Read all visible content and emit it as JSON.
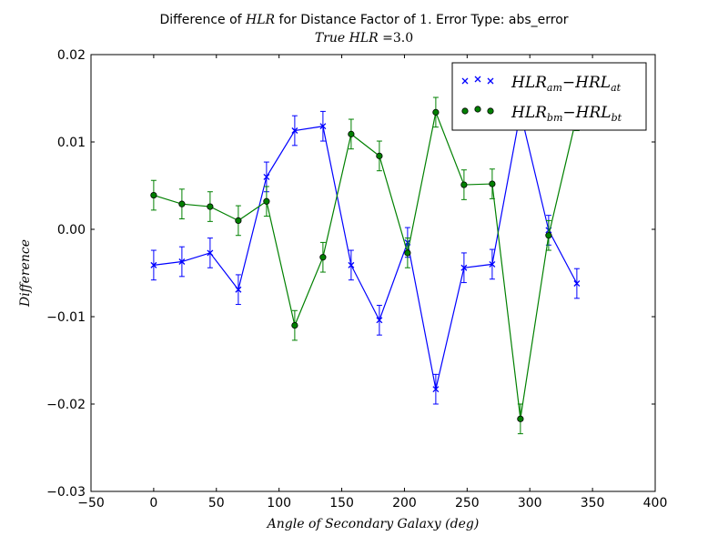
{
  "chart_data": {
    "type": "line",
    "title": "Difference of HLR for Distance Factor of 1. Error Type: abs_error",
    "title_parts": {
      "prefix": "Difference of ",
      "math": "HLR",
      "middle": " for Distance Factor of ",
      "number": "1.",
      "suffix": " Error Type: abs_error"
    },
    "subtitle": "True HLR =3.0",
    "subtitle_parts": {
      "math": "True HLR",
      "suffix": " =3.0"
    },
    "xlabel": "Angle of Secondary Galaxy (deg)",
    "ylabel": "Difference",
    "xlim": [
      -50,
      400
    ],
    "ylim": [
      -0.03,
      0.02
    ],
    "xticks": [
      "−50",
      "0",
      "50",
      "100",
      "150",
      "200",
      "250",
      "300",
      "350",
      "400"
    ],
    "yticks": [
      "−0.03",
      "−0.02",
      "−0.01",
      "0.00",
      "0.01",
      "0.02"
    ],
    "legend_position": "top-right",
    "grid": false,
    "x": [
      0,
      22.5,
      45,
      67.5,
      90,
      112.5,
      135,
      157.5,
      180,
      202.5,
      225,
      247.5,
      270,
      292.5,
      315,
      337.5
    ],
    "series": [
      {
        "name": "HLR_am − HRL_at",
        "legend": {
          "a": "HLR",
          "a_sub": "am",
          "b": "HRL",
          "b_sub": "at"
        },
        "color": "#0000ff",
        "marker": "x",
        "values": [
          -0.0041,
          -0.0037,
          -0.0027,
          -0.0069,
          0.006,
          0.0113,
          0.0118,
          -0.0041,
          -0.0104,
          -0.0015,
          -0.0183,
          -0.0044,
          -0.004,
          0.0134,
          -0.0001,
          -0.0062
        ],
        "errors": [
          0.0017,
          0.0017,
          0.0017,
          0.0017,
          0.0017,
          0.0017,
          0.0017,
          0.0017,
          0.0017,
          0.0017,
          0.0017,
          0.0017,
          0.0017,
          0.0017,
          0.0017,
          0.0017
        ]
      },
      {
        "name": "HLR_bm − HRL_bt",
        "legend": {
          "a": "HLR",
          "a_sub": "bm",
          "b": "HRL",
          "b_sub": "bt"
        },
        "color": "#008000",
        "marker": "o",
        "values": [
          0.0039,
          0.0029,
          0.0026,
          0.001,
          0.0032,
          -0.011,
          -0.0032,
          0.0109,
          0.0084,
          -0.0027,
          0.0134,
          0.0051,
          0.0052,
          -0.0217,
          -0.0007,
          0.013
        ],
        "errors": [
          0.0017,
          0.0017,
          0.0017,
          0.0017,
          0.0017,
          0.0017,
          0.0017,
          0.0017,
          0.0017,
          0.0017,
          0.0017,
          0.0017,
          0.0017,
          0.0017,
          0.0017,
          0.0017
        ]
      }
    ]
  }
}
